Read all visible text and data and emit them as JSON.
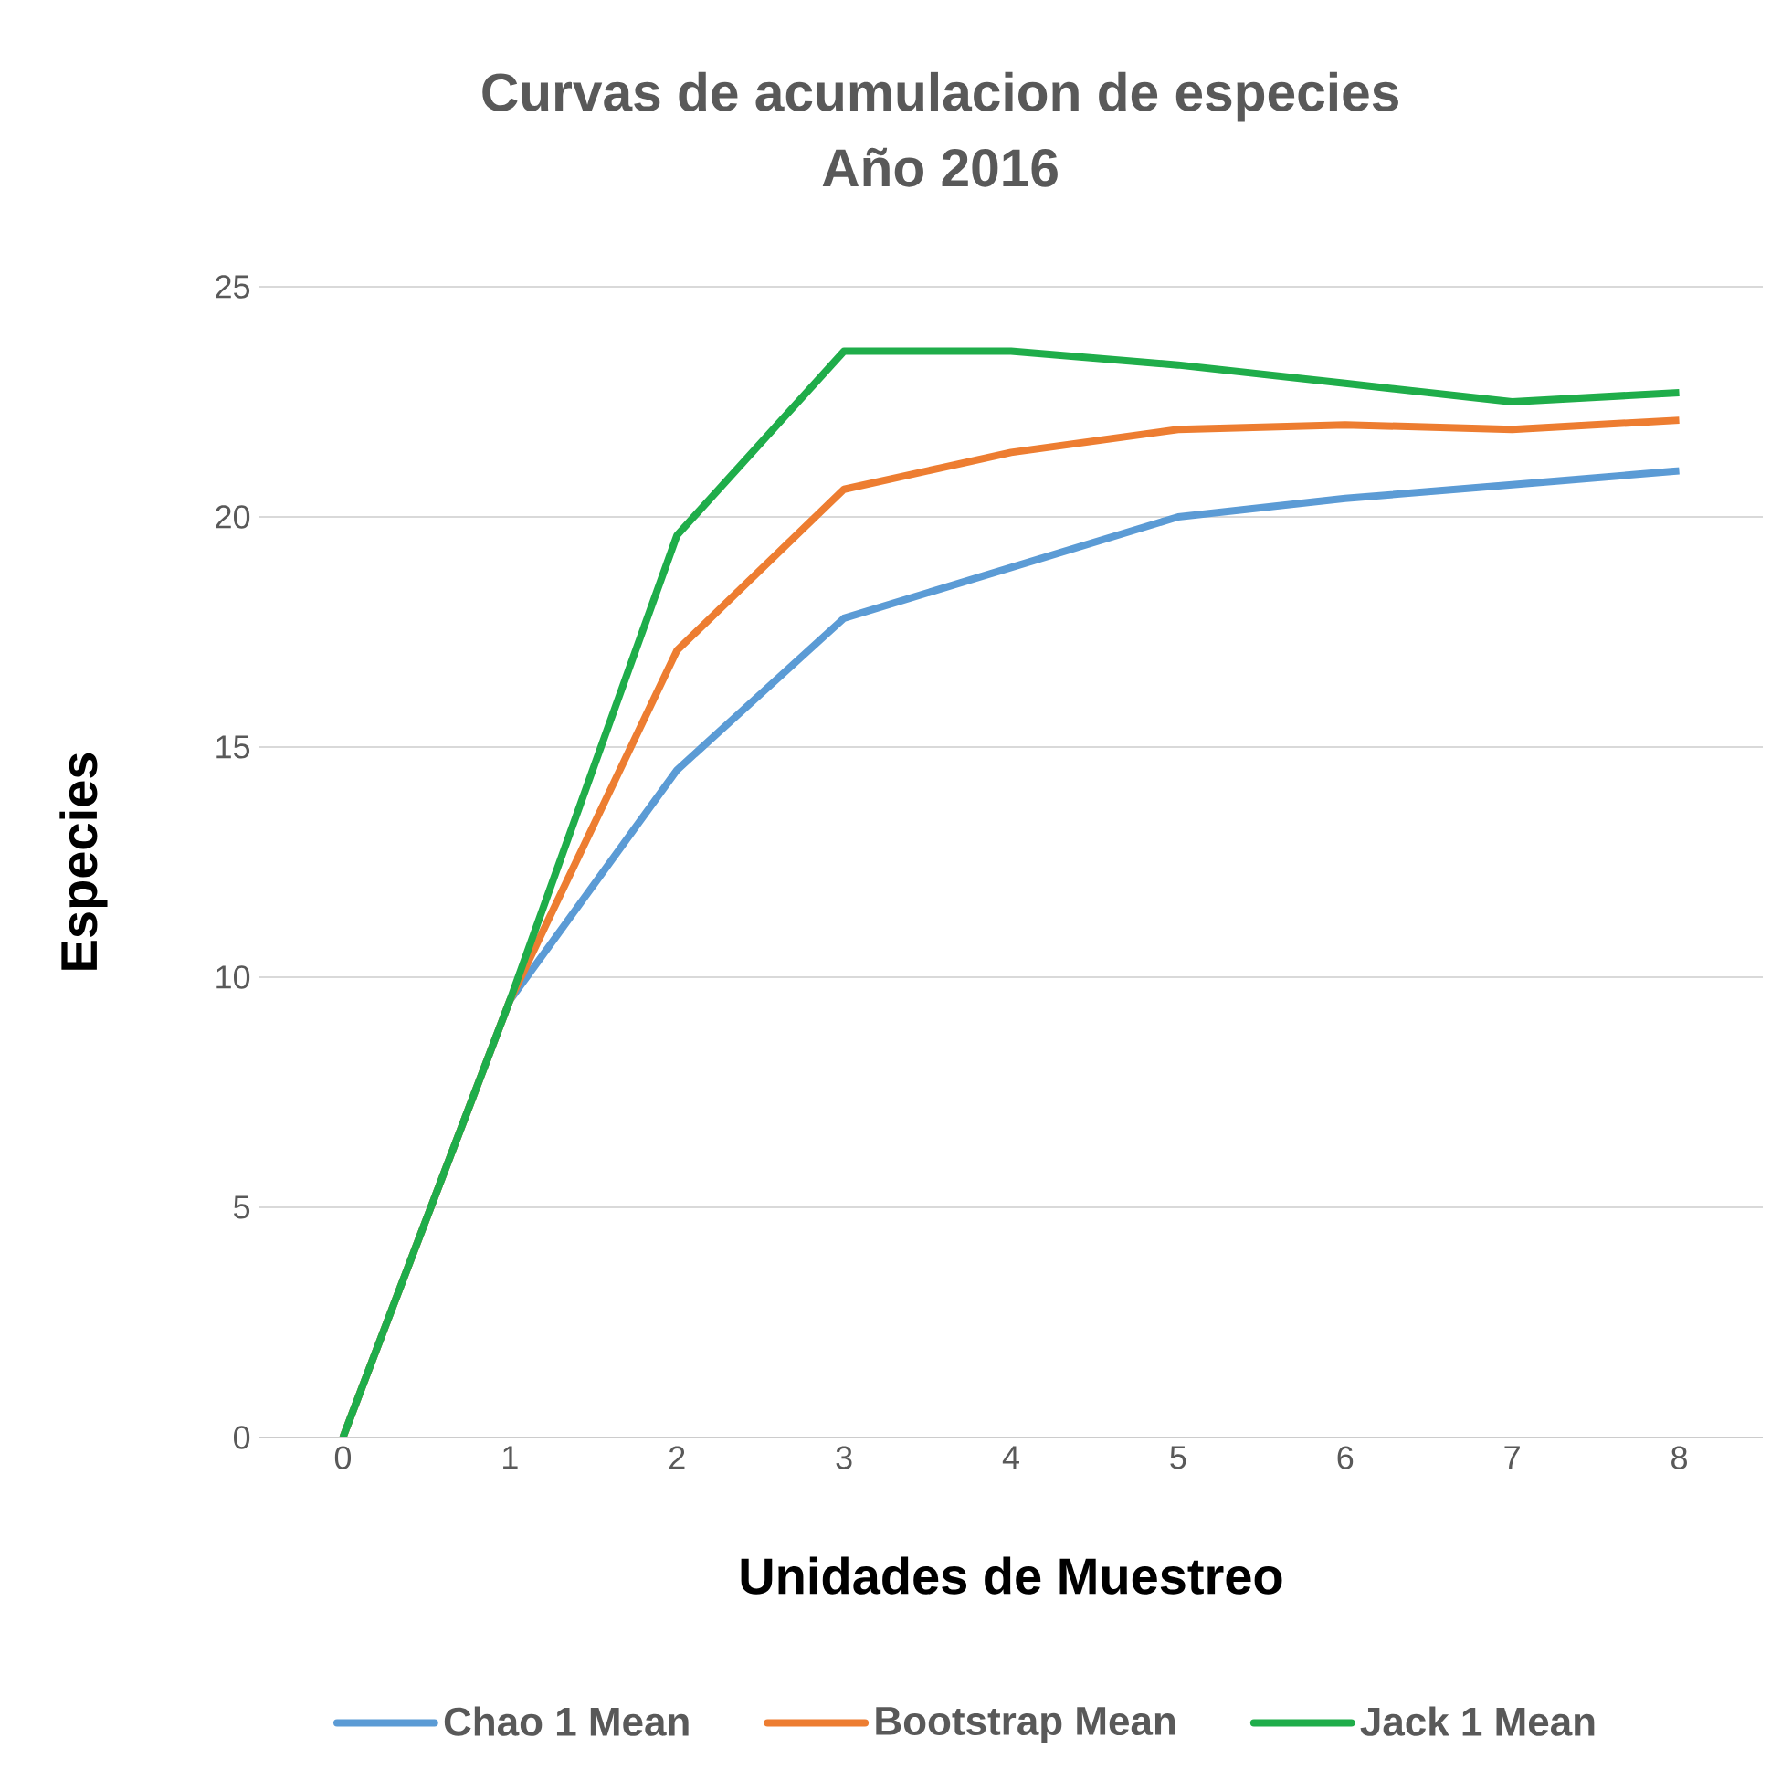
{
  "chart_data": {
    "type": "line",
    "title": "Curvas de acumulacion de especies",
    "subtitle": "Año 2016",
    "xlabel": "Unidades de Muestreo",
    "ylabel": "Especies",
    "categories": [
      "0",
      "1",
      "2",
      "3",
      "4",
      "5",
      "6",
      "7",
      "8"
    ],
    "series": [
      {
        "name": "Chao 1 Mean",
        "color": "#5b9bd5",
        "values": [
          0,
          9.5,
          14.5,
          17.8,
          18.9,
          20,
          20.4,
          20.7,
          21
        ]
      },
      {
        "name": "Bootstrap Mean",
        "color": "#ed7d31",
        "values": [
          0,
          9.5,
          17.1,
          20.6,
          21.4,
          21.9,
          22,
          21.9,
          22.1
        ]
      },
      {
        "name": "Jack 1 Mean",
        "color": "#1fad4a",
        "values": [
          0,
          9.5,
          19.6,
          23.6,
          23.6,
          23.3,
          22.9,
          22.5,
          22.7
        ]
      }
    ],
    "ylim": [
      0,
      25
    ],
    "yticks": [
      0,
      5,
      10,
      15,
      20,
      25
    ],
    "grid": "y",
    "legend": "bottom"
  }
}
